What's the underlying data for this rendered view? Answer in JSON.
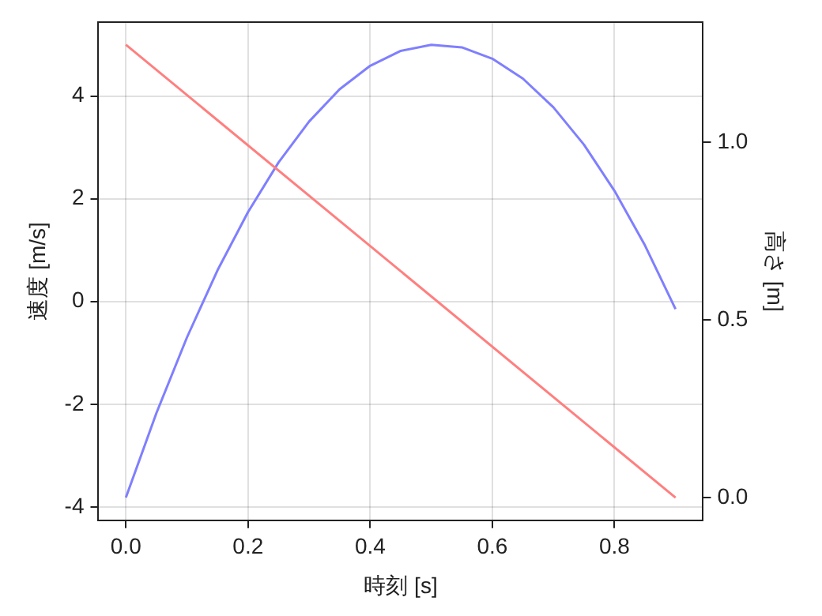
{
  "chart_data": {
    "type": "line",
    "xlabel": "時刻 [s]",
    "ylabel": "速度 [m/s]",
    "y2label": "高さ [m]",
    "series": [
      {
        "color": "#ff7f7f",
        "x": [
          0,
          0.9
        ],
        "values": [
          5,
          -3.82
        ]
      },
      {
        "color": "#7f7fff",
        "axis": "y2",
        "x": [
          0,
          0.05,
          0.1,
          0.15,
          0.2,
          0.25,
          0.3,
          0.35,
          0.4,
          0.45,
          0.5,
          0.55,
          0.6,
          0.65,
          0.7,
          0.75,
          0.8,
          0.85,
          0.9
        ],
        "values": [
          0,
          0.238,
          0.451,
          0.64,
          0.804,
          0.944,
          1.059,
          1.15,
          1.216,
          1.258,
          1.275,
          1.268,
          1.236,
          1.18,
          1.099,
          0.994,
          0.864,
          0.71,
          0.531
        ]
      }
    ],
    "xlim": [
      -0.045,
      0.945
    ],
    "xticks": [
      {
        "value": 0,
        "label": "0.0"
      },
      {
        "value": 0.2,
        "label": "0.2"
      },
      {
        "value": 0.4,
        "label": "0.4"
      },
      {
        "value": 0.6,
        "label": "0.6"
      },
      {
        "value": 0.8,
        "label": "0.8"
      }
    ],
    "ylim": [
      -4.26,
      5.44
    ],
    "yticks": [
      -4,
      -2,
      0,
      2,
      4
    ],
    "y2lim": [
      -0.064,
      1.339
    ],
    "y2ticks": [
      {
        "value": 0,
        "label": "0.0"
      },
      {
        "value": 0.5,
        "label": "0.5"
      },
      {
        "value": 1,
        "label": "1.0"
      }
    ],
    "grid": true,
    "legend": false,
    "marker": "none",
    "line_style": "solid"
  }
}
